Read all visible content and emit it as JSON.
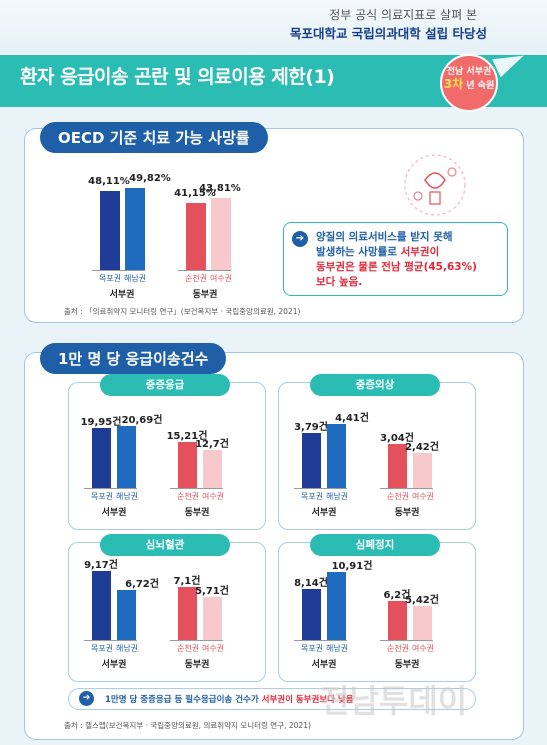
{
  "header": {
    "supertitle": "정부 공식 의료지표로 살펴 본",
    "subtitle": "목포대학교 국립의과대학 설립 타당성",
    "title": "환자 응급이송 곤란 및 의료이용 제한(1)",
    "badge": {
      "line1": "전남 서부권",
      "highlight": "3차",
      "line2": "년 숙원"
    }
  },
  "section1": {
    "title": "OECD 기준 치료 가능 사망률",
    "note_line1": "양질의 의료서비스를 받지 못해",
    "note_line2": "발생하는 사망률로 ",
    "note_red1": "서부권이",
    "note_red2": "동부권은 물론 전남 평균(45,63%)",
    "note_red3": "보다 높음.",
    "source": "출처 : 「의료취약지 모니터링 연구」(보건복지부 · 국립중앙의료원, 2021)"
  },
  "section2": {
    "title": "1만 명 당 응급이송건수",
    "note_pre": "1만명 당 중증응급 등 필수응급이송 건수가 ",
    "note_red": "서부권이 동부권보다 낮음",
    "source": "출처 : 헬스맵(보건복지부 · 국립중앙의료원, 의료취약지 모니터링 연구, 2021)"
  },
  "watermark": "전남투데이",
  "colors": {
    "west": "#1f3d96",
    "west2": "#1f6bbd",
    "east": "#e4505b",
    "east2": "#f7c9cc",
    "teal": "#2bbcb3"
  },
  "chart_data": [
    {
      "type": "bar",
      "title": "OECD 기준 치료 가능 사망률",
      "categories": [
        "목포권",
        "해남권",
        "순천권",
        "여수권"
      ],
      "groups": [
        "서부권",
        "서부권",
        "동부권",
        "동부권"
      ],
      "values": [
        48.11,
        49.82,
        41.15,
        43.81
      ],
      "labels": [
        "48,11%",
        "49,82%",
        "41,15%",
        "43,81%"
      ]
    },
    {
      "type": "bar",
      "title": "중증응급",
      "categories": [
        "목포권",
        "해남권",
        "순천권",
        "여수권"
      ],
      "groups": [
        "서부권",
        "서부권",
        "동부권",
        "동부권"
      ],
      "values": [
        19.95,
        20.69,
        15.21,
        12.7
      ],
      "labels": [
        "19,95건",
        "20,69건",
        "15,21건",
        "12,7건"
      ]
    },
    {
      "type": "bar",
      "title": "중증외상",
      "categories": [
        "목포권",
        "해남권",
        "순천권",
        "여수권"
      ],
      "groups": [
        "서부권",
        "서부권",
        "동부권",
        "동부권"
      ],
      "values": [
        3.79,
        4.41,
        3.04,
        2.42
      ],
      "labels": [
        "3,79건",
        "4,41건",
        "3,04건",
        "2,42건"
      ]
    },
    {
      "type": "bar",
      "title": "심뇌혈관",
      "categories": [
        "목포권",
        "해남권",
        "순천권",
        "여수권"
      ],
      "groups": [
        "서부권",
        "서부권",
        "동부권",
        "동부권"
      ],
      "values": [
        9.17,
        6.72,
        7.1,
        5.71
      ],
      "labels": [
        "9,17건",
        "6,72건",
        "7,1건",
        "5,71건"
      ]
    },
    {
      "type": "bar",
      "title": "심폐정지",
      "categories": [
        "목포권",
        "해남권",
        "순천권",
        "여수권"
      ],
      "groups": [
        "서부권",
        "서부권",
        "동부권",
        "동부권"
      ],
      "values": [
        8.14,
        10.91,
        6.2,
        5.42
      ],
      "labels": [
        "8,14건",
        "10,91건",
        "6,2건",
        "5,42건"
      ]
    }
  ]
}
